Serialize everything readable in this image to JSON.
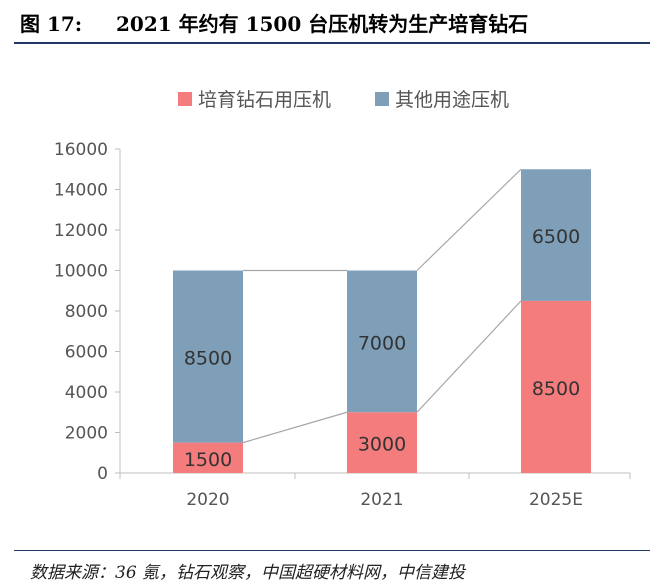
{
  "header": {
    "figure_label": "图 17:",
    "title": "2021 年约有 1500 台压机转为生产培育钻石"
  },
  "footer": {
    "source": "数据来源：36 氪，钻石观察，中国超硬材料网，中信建投"
  },
  "chart_data": {
    "type": "bar",
    "stacked": true,
    "categories": [
      "2020",
      "2021",
      "2025E"
    ],
    "series": [
      {
        "name": "培育钻石用压机",
        "values": [
          1500,
          3000,
          8500
        ],
        "color": "#f47c7c"
      },
      {
        "name": "其他用途压机",
        "values": [
          8500,
          7000,
          6500
        ],
        "color": "#7f9fb8"
      }
    ],
    "ylim": [
      0,
      16000
    ],
    "yticks": [
      0,
      2000,
      4000,
      6000,
      8000,
      10000,
      12000,
      14000,
      16000
    ],
    "series_lines": true,
    "legend_position": "top",
    "grid": false
  }
}
